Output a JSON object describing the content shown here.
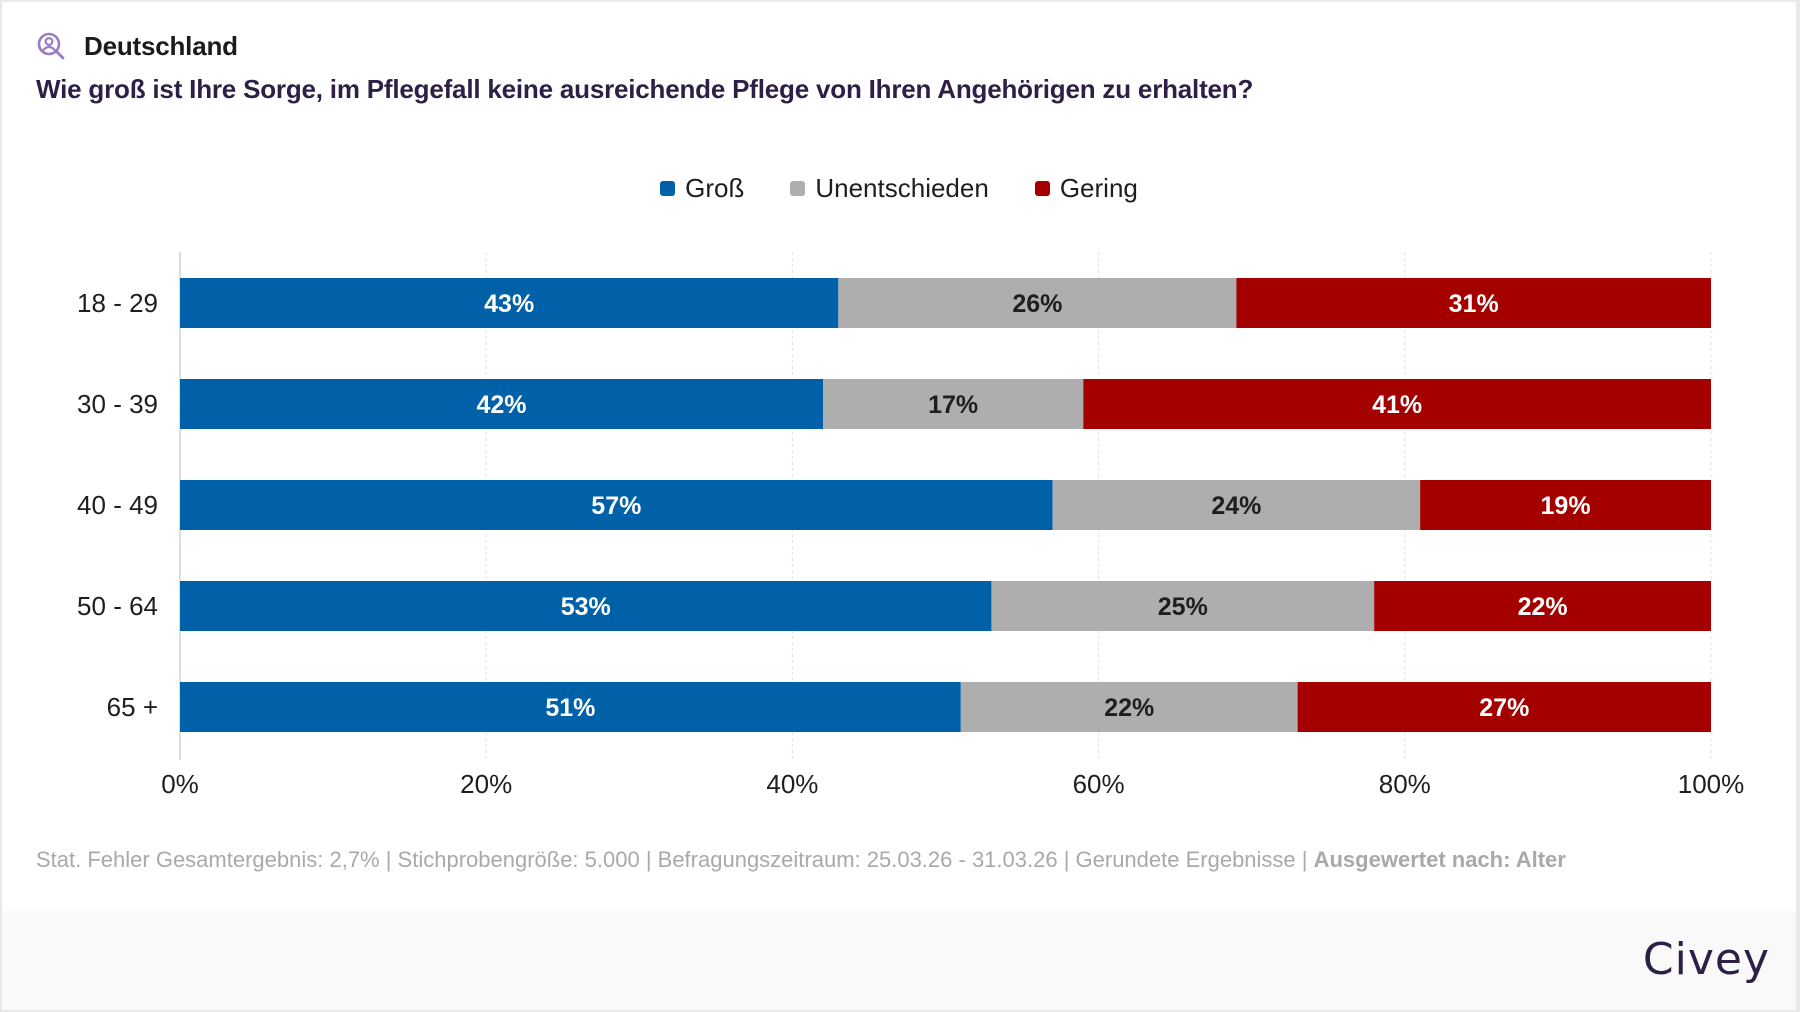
{
  "header": {
    "region_icon": "person-search-icon",
    "region_label": "Deutschland",
    "question": "Wie groß ist Ihre Sorge, im Pflegefall keine ausreichende Pflege von Ihren Angehörigen zu erhalten?"
  },
  "colors": {
    "accent_icon": "#9b7bc4",
    "title": "#2d1f45",
    "gross": "#0060a8",
    "unentschieden": "#aeaeae",
    "gering": "#a50000"
  },
  "legend": [
    {
      "label": "Groß",
      "color": "#0060a8"
    },
    {
      "label": "Unentschieden",
      "color": "#aeaeae"
    },
    {
      "label": "Gering",
      "color": "#a50000"
    }
  ],
  "chart_data": {
    "type": "bar",
    "orientation": "horizontal",
    "stacked": true,
    "title": "Wie groß ist Ihre Sorge, im Pflegefall keine ausreichende Pflege von Ihren Angehörigen zu erhalten?",
    "xlabel": "",
    "ylabel": "",
    "categories": [
      "18 - 29",
      "30 - 39",
      "40 - 49",
      "50 - 64",
      "65 +"
    ],
    "series": [
      {
        "name": "Groß",
        "color": "#0060a8",
        "label_color": "#ffffff",
        "values": [
          43,
          42,
          57,
          53,
          51
        ]
      },
      {
        "name": "Unentschieden",
        "color": "#aeaeae",
        "label_color": "#1e1e1e",
        "values": [
          26,
          17,
          24,
          25,
          22
        ]
      },
      {
        "name": "Gering",
        "color": "#a50000",
        "label_color": "#ffffff",
        "values": [
          31,
          41,
          19,
          22,
          27
        ]
      }
    ],
    "xlim": [
      0,
      100
    ],
    "xticks": [
      0,
      20,
      40,
      60,
      80,
      100
    ],
    "xtick_labels": [
      "0%",
      "20%",
      "40%",
      "60%",
      "80%",
      "100%"
    ],
    "value_suffix": "%",
    "grid": true,
    "legend_position": "top-center"
  },
  "footer": {
    "note": "Stat. Fehler Gesamtergebnis: 2,7% | Stichprobengröße: 5.000 | Befragungszeitraum: 25.03.26 - 31.03.26 | Gerundete Ergebnisse | ",
    "note_bold": "Ausgewertet nach: Alter",
    "brand": "Civey"
  }
}
